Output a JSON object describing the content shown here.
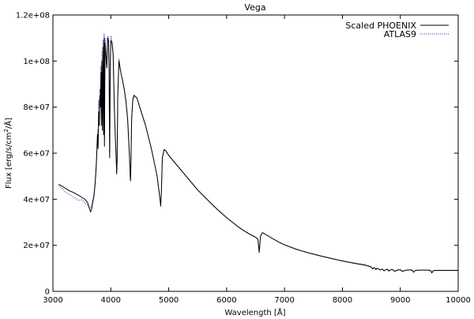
{
  "chart_data": {
    "type": "line",
    "title": "Vega",
    "xlabel": "Wavelength [Å]",
    "ylabel": {
      "prefix": "Flux [erg/s/cm",
      "sup": "2",
      "suffix": "/Å]"
    },
    "xlim": [
      3000,
      10000
    ],
    "ylim": [
      0,
      120000000
    ],
    "x_ticks": [
      3000,
      4000,
      5000,
      6000,
      7000,
      8000,
      9000,
      10000
    ],
    "x_tick_labels": [
      "3000",
      "4000",
      "5000",
      "6000",
      "7000",
      "8000",
      "9000",
      "10000"
    ],
    "y_ticks": [
      0,
      20000000,
      40000000,
      60000000,
      80000000,
      100000000,
      120000000
    ],
    "y_tick_labels": [
      "0",
      "2e+07",
      "4e+07",
      "6e+07",
      "8e+07",
      "1e+08",
      "1.2e+08"
    ],
    "legend_position": "top-right",
    "series": [
      {
        "name": "Scaled PHOENIX",
        "color": "#000000",
        "style": "solid",
        "x": [
          3100,
          3150,
          3200,
          3250,
          3300,
          3350,
          3400,
          3450,
          3500,
          3550,
          3600,
          3630,
          3650,
          3670,
          3690,
          3710,
          3730,
          3750,
          3770,
          3780,
          3790,
          3800,
          3810,
          3820,
          3830,
          3835,
          3845,
          3855,
          3865,
          3875,
          3885,
          3890,
          3900,
          3910,
          3920,
          3930,
          3945,
          3960,
          3970,
          3980,
          3990,
          4000,
          4020,
          4040,
          4060,
          4080,
          4095,
          4101,
          4108,
          4120,
          4140,
          4160,
          4180,
          4200,
          4230,
          4260,
          4290,
          4320,
          4335,
          4340,
          4345,
          4360,
          4380,
          4400,
          4450,
          4500,
          4550,
          4600,
          4650,
          4700,
          4750,
          4800,
          4830,
          4850,
          4861,
          4872,
          4890,
          4920,
          4950,
          5000,
          5100,
          5200,
          5300,
          5400,
          5500,
          5600,
          5700,
          5800,
          5900,
          6000,
          6100,
          6200,
          6300,
          6400,
          6500,
          6540,
          6555,
          6563,
          6570,
          6585,
          6620,
          6700,
          6800,
          6900,
          7000,
          7200,
          7400,
          7600,
          7800,
          8000,
          8200,
          8400,
          8440,
          8470,
          8500,
          8525,
          8545,
          8560,
          8580,
          8598,
          8620,
          8650,
          8665,
          8690,
          8720,
          8750,
          8780,
          8800,
          8830,
          8862,
          8900,
          8960,
          9000,
          9015,
          9040,
          9100,
          9200,
          9230,
          9260,
          9350,
          9450,
          9520,
          9546,
          9570,
          9650,
          9800,
          10000
        ],
        "y": [
          46500000,
          45800000,
          45000000,
          44200000,
          43500000,
          43000000,
          42300000,
          41600000,
          40800000,
          40000000,
          38500000,
          36000000,
          34500000,
          36000000,
          39000000,
          41500000,
          47000000,
          55000000,
          68000000,
          62000000,
          78000000,
          72000000,
          85000000,
          80000000,
          95000000,
          72000000,
          100000000,
          70000000,
          106000000,
          68000000,
          110000000,
          63000000,
          108000000,
          104000000,
          100000000,
          97000000,
          110000000,
          109000000,
          95000000,
          58000000,
          97000000,
          109000000,
          108000000,
          103000000,
          80000000,
          65000000,
          56000000,
          51000000,
          56000000,
          85000000,
          100000000,
          97000000,
          94000000,
          92000000,
          88000000,
          83000000,
          75000000,
          60000000,
          50000000,
          48000000,
          52000000,
          75000000,
          83000000,
          85000000,
          84000000,
          80000000,
          76000000,
          72000000,
          67000000,
          62000000,
          56000000,
          50000000,
          44000000,
          40000000,
          37000000,
          42000000,
          58000000,
          61500000,
          61000000,
          59000000,
          56000000,
          53000000,
          50000000,
          47000000,
          44000000,
          41500000,
          39000000,
          36500000,
          34200000,
          32000000,
          30000000,
          28000000,
          26300000,
          24800000,
          23500000,
          22600000,
          19000000,
          17000000,
          19000000,
          24000000,
          25500000,
          24300000,
          22800000,
          21400000,
          20200000,
          18300000,
          16800000,
          15500000,
          14300000,
          13200000,
          12200000,
          11300000,
          11000000,
          10800000,
          10500000,
          9700000,
          10300000,
          10100000,
          9400000,
          10000000,
          9800000,
          9200000,
          9500000,
          9700000,
          8900000,
          9400000,
          9600000,
          8800000,
          9300000,
          9500000,
          8700000,
          9300000,
          9400000,
          9000000,
          8700000,
          9200000,
          9300000,
          8300000,
          9100000,
          9200000,
          9200000,
          9100000,
          8000000,
          9000000,
          9100000,
          9100000,
          9100000
        ]
      },
      {
        "name": "ATLAS9",
        "color": "#3030b0",
        "style": "dotted",
        "x": [
          3100,
          3150,
          3200,
          3250,
          3300,
          3350,
          3400,
          3450,
          3500,
          3550,
          3600,
          3630,
          3650,
          3670,
          3690,
          3710,
          3730,
          3750,
          3770,
          3780,
          3790,
          3800,
          3810,
          3820,
          3830,
          3835,
          3845,
          3855,
          3865,
          3875,
          3885,
          3890,
          3900,
          3910,
          3920,
          3930,
          3945,
          3960,
          3970,
          3980,
          3990,
          4000,
          4020,
          4040,
          4060,
          4080,
          4095,
          4101,
          4108,
          4120,
          4140,
          4160,
          4180,
          4200,
          4230,
          4260,
          4290,
          4320,
          4335,
          4340,
          4345,
          4360,
          4380,
          4400,
          4450,
          4500,
          4550,
          4600,
          4650,
          4700,
          4750,
          4800,
          4830,
          4850,
          4861,
          4872,
          4890,
          4920,
          4950,
          5000,
          5100,
          5200,
          5300,
          5400,
          5500,
          5600,
          5700,
          5800,
          5900,
          6000,
          6100,
          6200,
          6300,
          6400,
          6500,
          6540,
          6555,
          6563,
          6570,
          6585,
          6620,
          6700,
          6800,
          6900,
          7000,
          7200,
          7400,
          7600,
          7800,
          8000,
          8200,
          8400,
          8440,
          8470,
          8500,
          8525,
          8545,
          8560,
          8580,
          8598,
          8620,
          8650,
          8665,
          8690,
          8720,
          8750,
          8780,
          8800,
          8830,
          8862,
          8900,
          8960,
          9000,
          9015,
          9040,
          9100,
          9200,
          9230,
          9260,
          9350,
          9450,
          9520,
          9546,
          9570,
          9650,
          9800,
          10000
        ],
        "y": [
          46000000,
          44800000,
          43500000,
          42500000,
          41800000,
          41000000,
          40200000,
          39500000,
          39800000,
          38500000,
          37500000,
          36500000,
          36200000,
          37500000,
          40000000,
          42500000,
          48000000,
          57000000,
          70000000,
          64000000,
          83000000,
          75000000,
          88000000,
          82000000,
          98000000,
          75000000,
          104000000,
          73000000,
          109000000,
          70000000,
          112000000,
          66000000,
          110000000,
          106000000,
          102000000,
          99000000,
          111000000,
          110000000,
          97000000,
          60000000,
          99000000,
          111000000,
          109000000,
          104000000,
          82000000,
          66000000,
          57000000,
          52000000,
          57000000,
          86000000,
          101000000,
          97500000,
          94000000,
          91500000,
          87500000,
          82500000,
          74500000,
          60000000,
          51000000,
          49000000,
          53000000,
          76000000,
          84000000,
          85500000,
          84000000,
          80000000,
          76000000,
          72000000,
          67000000,
          62000000,
          56000000,
          50000000,
          44000000,
          40000000,
          38000000,
          43000000,
          58500000,
          61800000,
          61200000,
          59200000,
          56200000,
          53200000,
          50200000,
          47200000,
          44200000,
          41600000,
          39100000,
          36600000,
          34300000,
          32100000,
          30100000,
          28100000,
          26400000,
          24900000,
          23600000,
          22700000,
          19500000,
          16500000,
          19500000,
          24200000,
          25600000,
          24400000,
          22900000,
          21500000,
          20300000,
          18400000,
          16900000,
          15600000,
          14400000,
          13300000,
          12400000,
          11600000,
          11300000,
          11000000,
          10600000,
          9800000,
          10400000,
          10200000,
          9500000,
          10100000,
          9900000,
          9300000,
          9600000,
          9800000,
          9000000,
          9500000,
          9700000,
          8900000,
          9400000,
          9600000,
          8800000,
          9400000,
          9500000,
          9100000,
          8800000,
          9300000,
          9400000,
          8400000,
          9200000,
          9300000,
          9300000,
          9200000,
          8200000,
          9100000,
          9200000,
          9200000,
          9200000
        ]
      }
    ]
  }
}
